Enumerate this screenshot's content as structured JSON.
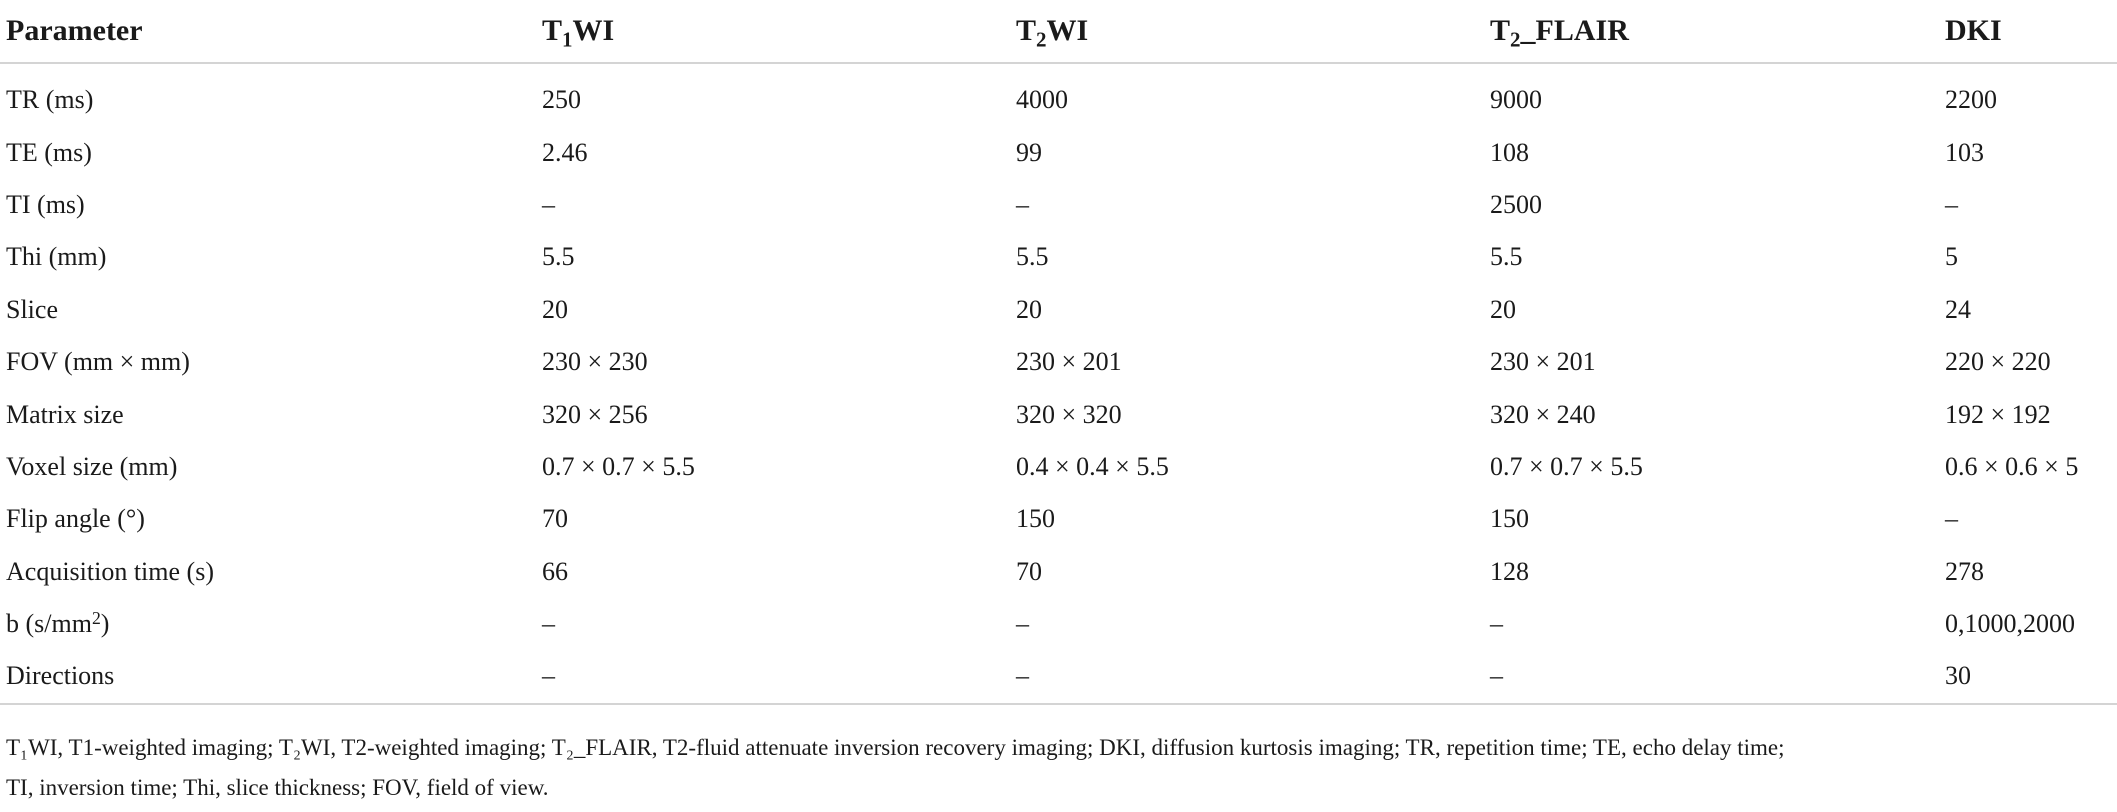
{
  "table": {
    "headers": [
      {
        "base": "Parameter",
        "sub": "",
        "rest": ""
      },
      {
        "base": "T",
        "sub": "1",
        "rest": "WI"
      },
      {
        "base": "T",
        "sub": "2",
        "rest": "WI"
      },
      {
        "base": "T",
        "sub": "2",
        "rest": "_FLAIR"
      },
      {
        "base": "DKI",
        "sub": "",
        "rest": ""
      }
    ],
    "rows": [
      {
        "label": "TR (ms)",
        "values": [
          "250",
          "4000",
          "9000",
          "2200"
        ]
      },
      {
        "label": "TE (ms)",
        "values": [
          "2.46",
          "99",
          "108",
          "103"
        ]
      },
      {
        "label": "TI (ms)",
        "values": [
          "–",
          "–",
          "2500",
          "–"
        ]
      },
      {
        "label": "Thi (mm)",
        "values": [
          "5.5",
          "5.5",
          "5.5",
          "5"
        ]
      },
      {
        "label": "Slice",
        "values": [
          "20",
          "20",
          "20",
          "24"
        ]
      },
      {
        "label": "FOV (mm × mm)",
        "values": [
          "230 × 230",
          "230 × 201",
          "230 × 201",
          "220 × 220"
        ]
      },
      {
        "label": "Matrix size",
        "values": [
          "320 × 256",
          "320 × 320",
          "320 × 240",
          "192 × 192"
        ]
      },
      {
        "label": "Voxel size (mm)",
        "values": [
          "0.7 × 0.7 × 5.5",
          "0.4 × 0.4 × 5.5",
          "0.7 × 0.7 × 5.5",
          "0.6 × 0.6 × 5"
        ]
      },
      {
        "label": "Flip angle (°)",
        "values": [
          "70",
          "150",
          "150",
          "–"
        ]
      },
      {
        "label": "Acquisition time (s)",
        "values": [
          "66",
          "70",
          "128",
          "278"
        ]
      },
      {
        "label": "b (s/mm",
        "label_sup": "2",
        "label_after": ")",
        "values": [
          "–",
          "–",
          "–",
          "0,1000,2000"
        ]
      },
      {
        "label": "Directions",
        "values": [
          "–",
          "–",
          "–",
          "30"
        ]
      }
    ]
  },
  "footnote": {
    "line1": "T₁WI, T1-weighted imaging; T₂WI, T2-weighted imaging; T₂_FLAIR, T2-fluid attenuate inversion recovery imaging; DKI, diffusion kurtosis imaging; TR, repetition time; TE, echo delay time;",
    "line2": "TI, inversion time; Thi, slice thickness; FOV, field of view."
  }
}
